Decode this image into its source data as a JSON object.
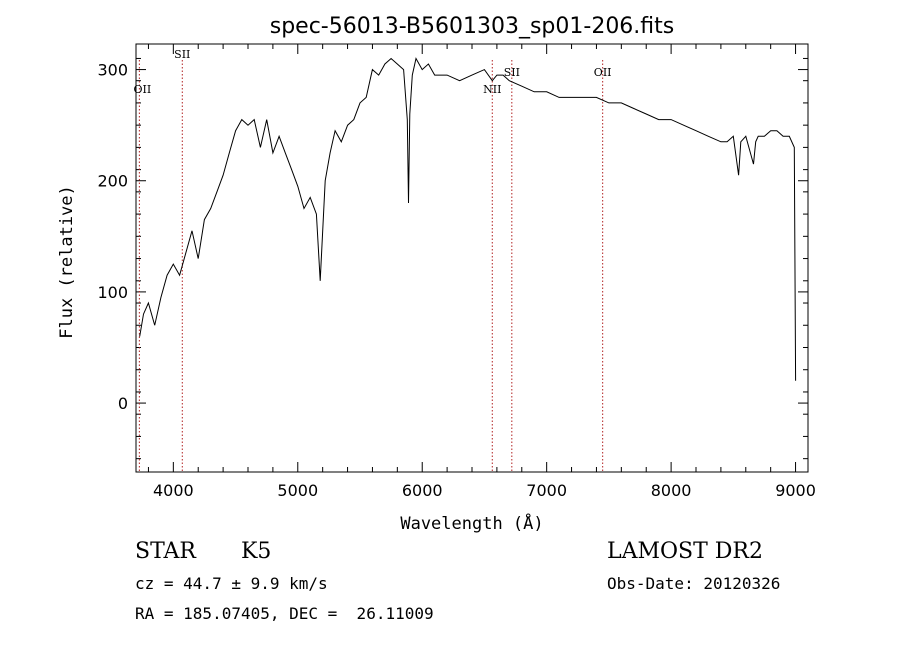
{
  "chart_data": {
    "type": "line",
    "title": "spec-56013-B5601303_sp01-206.fits",
    "xlabel": "Wavelength (Å)",
    "ylabel": "Flux (relative)",
    "xlim": [
      3700,
      9100
    ],
    "ylim": [
      -62,
      323
    ],
    "x_ticks": [
      4000,
      5000,
      6000,
      7000,
      8000,
      9000
    ],
    "y_ticks": [
      0,
      100,
      200,
      300
    ],
    "grid": false,
    "series": [
      {
        "x": [
          3730,
          3760,
          3800,
          3850,
          3900,
          3950,
          4000,
          4050,
          4100,
          4150,
          4200,
          4250,
          4300,
          4350,
          4400,
          4450,
          4500,
          4550,
          4600,
          4650,
          4700,
          4750,
          4800,
          4850,
          4900,
          4950,
          5000,
          5050,
          5100,
          5150,
          5180,
          5220,
          5260,
          5300,
          5350,
          5400,
          5450,
          5500,
          5550,
          5600,
          5650,
          5700,
          5750,
          5800,
          5850,
          5880,
          5890,
          5900,
          5920,
          5950,
          6000,
          6050,
          6100,
          6200,
          6300,
          6400,
          6500,
          6563,
          6600,
          6650,
          6700,
          6800,
          6900,
          7000,
          7100,
          7200,
          7300,
          7400,
          7500,
          7600,
          7700,
          7800,
          7900,
          8000,
          8100,
          8200,
          8300,
          8400,
          8450,
          8500,
          8542,
          8560,
          8600,
          8662,
          8680,
          8700,
          8750,
          8800,
          8850,
          8900,
          8950,
          8990,
          9000
        ],
        "y": [
          60,
          80,
          90,
          70,
          95,
          115,
          125,
          115,
          135,
          155,
          130,
          165,
          175,
          190,
          205,
          225,
          245,
          255,
          250,
          255,
          230,
          255,
          225,
          240,
          225,
          210,
          195,
          175,
          185,
          170,
          110,
          200,
          225,
          245,
          235,
          250,
          255,
          270,
          275,
          300,
          295,
          305,
          310,
          305,
          300,
          255,
          180,
          260,
          295,
          310,
          300,
          305,
          295,
          295,
          290,
          295,
          300,
          290,
          295,
          295,
          290,
          285,
          280,
          280,
          275,
          275,
          275,
          275,
          270,
          270,
          265,
          260,
          255,
          255,
          250,
          245,
          240,
          235,
          235,
          240,
          205,
          235,
          240,
          215,
          235,
          240,
          240,
          245,
          245,
          240,
          240,
          230,
          20
        ]
      }
    ],
    "lines": [
      {
        "label": "SII",
        "x": 4072
      },
      {
        "label": "OII",
        "x": 3727
      },
      {
        "label": "NII",
        "x": 6563
      },
      {
        "label": "SII",
        "x": 6720
      },
      {
        "label": "OII",
        "x": 7450
      }
    ],
    "footer": {
      "class": "STAR",
      "subclass": "K5",
      "cz": "cz = 44.7 ± 9.9 km/s",
      "radec": "RA = 185.07405, DEC =  26.11009",
      "survey": "LAMOST DR2",
      "obsdate": "Obs-Date: 20120326"
    }
  }
}
